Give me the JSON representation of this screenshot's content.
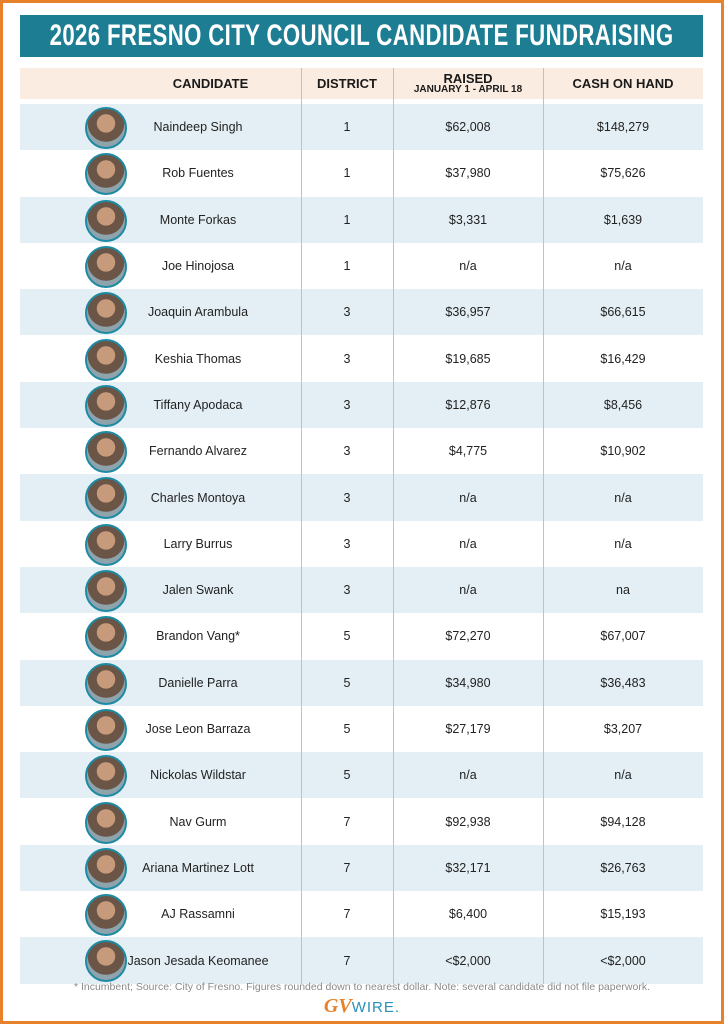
{
  "header": {
    "title": "2026 FRESNO CITY COUNCIL CANDIDATE FUNDRAISING"
  },
  "table": {
    "columns": [
      {
        "label": "CANDIDATE"
      },
      {
        "label": "DISTRICT"
      },
      {
        "label": "RAISED",
        "sublabel": "JANUARY 1 - APRIL 18"
      },
      {
        "label": "CASH ON HAND"
      }
    ],
    "rows": [
      [
        "Naindeep Singh",
        "1",
        "$62,008",
        "$148,279"
      ],
      [
        "Rob Fuentes",
        "1",
        "$37,980",
        "$75,626"
      ],
      [
        "Monte Forkas",
        "1",
        "$3,331",
        "$1,639"
      ],
      [
        "Joe Hinojosa",
        "1",
        "n/a",
        "n/a"
      ],
      [
        "Joaquin Arambula",
        "3",
        "$36,957",
        "$66,615"
      ],
      [
        "Keshia Thomas",
        "3",
        "$19,685",
        "$16,429"
      ],
      [
        "Tiffany Apodaca",
        "3",
        "$12,876",
        "$8,456"
      ],
      [
        "Fernando Alvarez",
        "3",
        "$4,775",
        "$10,902"
      ],
      [
        "Charles Montoya",
        "3",
        "n/a",
        "n/a"
      ],
      [
        "Larry Burrus",
        "3",
        "n/a",
        "n/a"
      ],
      [
        "Jalen Swank",
        "3",
        "n/a",
        "na"
      ],
      [
        "Brandon Vang*",
        "5",
        "$72,270",
        "$67,007"
      ],
      [
        "Danielle Parra",
        "5",
        "$34,980",
        "$36,483"
      ],
      [
        "Jose Leon Barraza",
        "5",
        "$27,179",
        "$3,207"
      ],
      [
        "Nickolas Wildstar",
        "5",
        "n/a",
        "n/a"
      ],
      [
        "Nav Gurm",
        "7",
        "$92,938",
        "$94,128"
      ],
      [
        "Ariana Martinez Lott",
        "7",
        "$32,171",
        "$26,763"
      ],
      [
        "AJ Rassamni",
        "7",
        "$6,400",
        "$15,193"
      ],
      [
        "Jason Jesada Keomanee",
        "7",
        "<$2,000",
        "<$2,000"
      ]
    ]
  },
  "footnote": "* Incumbent; Source: City of Fresno. Figures rounded down to nearest dollar. Note: several candidate did not file paperwork.",
  "logo": {
    "mark": "GV",
    "name": "WIRE."
  }
}
